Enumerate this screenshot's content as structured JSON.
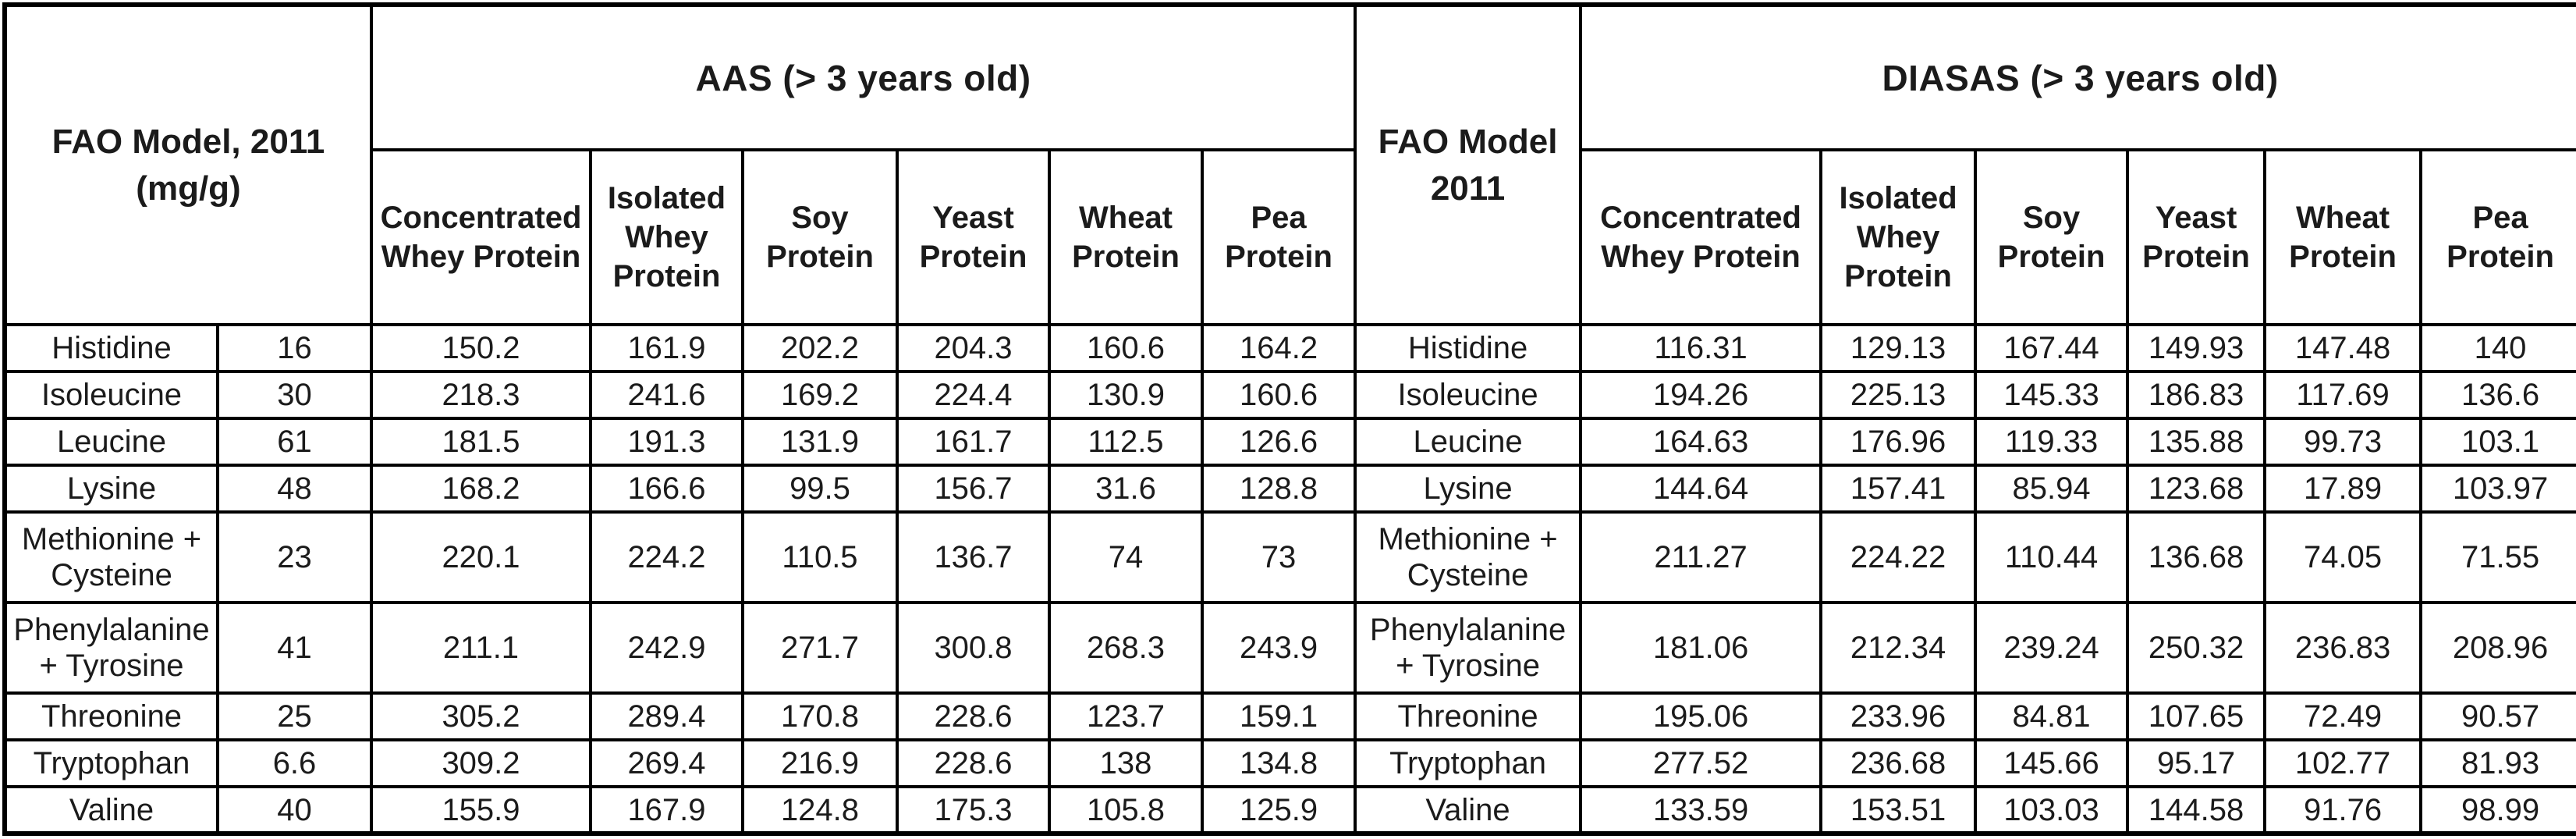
{
  "table": {
    "left_header_title": "FAO Model, 2011 (mg/g)",
    "mid_header_title": "FAO Model 2011",
    "aas": {
      "title": "AAS (> 3 years old)",
      "columns": [
        "Concentrated Whey Protein",
        "Isolated Whey Protein",
        "Soy Protein",
        "Yeast Protein",
        "Wheat Protein",
        "Pea Protein"
      ]
    },
    "diasas": {
      "title": "DIASAS (> 3 years old)",
      "columns": [
        "Concentrated Whey Protein",
        "Isolated Whey Protein",
        "Soy Protein",
        "Yeast Protein",
        "Wheat Protein",
        "Pea Protein"
      ]
    },
    "rows": [
      {
        "amino_acid": "Histidine",
        "fao_value": "16",
        "aas": [
          "150.2",
          "161.9",
          "202.2",
          "204.3",
          "160.6",
          "164.2"
        ],
        "amino_acid_mid": "Histidine",
        "diasas": [
          "116.31",
          "129.13",
          "167.44",
          "149.93",
          "147.48",
          "140"
        ]
      },
      {
        "amino_acid": "Isoleucine",
        "fao_value": "30",
        "aas": [
          "218.3",
          "241.6",
          "169.2",
          "224.4",
          "130.9",
          "160.6"
        ],
        "amino_acid_mid": "Isoleucine",
        "diasas": [
          "194.26",
          "225.13",
          "145.33",
          "186.83",
          "117.69",
          "136.6"
        ]
      },
      {
        "amino_acid": "Leucine",
        "fao_value": "61",
        "aas": [
          "181.5",
          "191.3",
          "131.9",
          "161.7",
          "112.5",
          "126.6"
        ],
        "amino_acid_mid": "Leucine",
        "diasas": [
          "164.63",
          "176.96",
          "119.33",
          "135.88",
          "99.73",
          "103.1"
        ]
      },
      {
        "amino_acid": "Lysine",
        "fao_value": "48",
        "aas": [
          "168.2",
          "166.6",
          "99.5",
          "156.7",
          "31.6",
          "128.8"
        ],
        "amino_acid_mid": "Lysine",
        "diasas": [
          "144.64",
          "157.41",
          "85.94",
          "123.68",
          "17.89",
          "103.97"
        ]
      },
      {
        "amino_acid": "Methionine + Cysteine",
        "fao_value": "23",
        "aas": [
          "220.1",
          "224.2",
          "110.5",
          "136.7",
          "74",
          "73"
        ],
        "amino_acid_mid": "Methionine + Cysteine",
        "diasas": [
          "211.27",
          "224.22",
          "110.44",
          "136.68",
          "74.05",
          "71.55"
        ]
      },
      {
        "amino_acid": "Phenylalanine + Tyrosine",
        "fao_value": "41",
        "aas": [
          "211.1",
          "242.9",
          "271.7",
          "300.8",
          "268.3",
          "243.9"
        ],
        "amino_acid_mid": "Phenylalanine + Tyrosine",
        "diasas": [
          "181.06",
          "212.34",
          "239.24",
          "250.32",
          "236.83",
          "208.96"
        ]
      },
      {
        "amino_acid": "Threonine",
        "fao_value": "25",
        "aas": [
          "305.2",
          "289.4",
          "170.8",
          "228.6",
          "123.7",
          "159.1"
        ],
        "amino_acid_mid": "Threonine",
        "diasas": [
          "195.06",
          "233.96",
          "84.81",
          "107.65",
          "72.49",
          "90.57"
        ]
      },
      {
        "amino_acid": "Tryptophan",
        "fao_value": "6.6",
        "aas": [
          "309.2",
          "269.4",
          "216.9",
          "228.6",
          "138",
          "134.8"
        ],
        "amino_acid_mid": "Tryptophan",
        "diasas": [
          "277.52",
          "236.68",
          "145.66",
          "95.17",
          "102.77",
          "81.93"
        ]
      },
      {
        "amino_acid": "Valine",
        "fao_value": "40",
        "aas": [
          "155.9",
          "167.9",
          "124.8",
          "175.3",
          "105.8",
          "125.9"
        ],
        "amino_acid_mid": "Valine",
        "diasas": [
          "133.59",
          "153.51",
          "103.03",
          "144.58",
          "91.76",
          "98.99"
        ]
      }
    ]
  }
}
